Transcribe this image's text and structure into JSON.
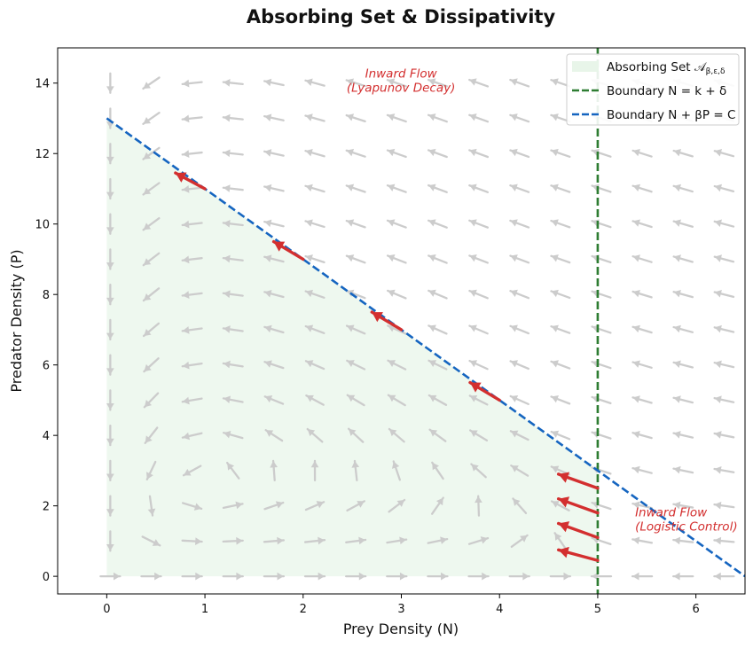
{
  "chart_data": {
    "type": "quiver",
    "title": "Absorbing Set & Dissipativity",
    "xlabel": "Prey Density (N)",
    "ylabel": "Predator Density (P)",
    "xlim": [
      -0.5,
      6.5
    ],
    "ylim": [
      -0.5,
      15
    ],
    "xticks": [
      0,
      1,
      2,
      3,
      4,
      5,
      6
    ],
    "yticks": [
      0,
      2,
      4,
      6,
      8,
      10,
      12,
      14
    ],
    "grid": false,
    "legend_position": "top-right",
    "legend": [
      {
        "label": "Absorbing Set 𝒜",
        "sub": "β,ε,δ",
        "kind": "fill",
        "color": "#e8f5e9"
      },
      {
        "label": "Boundary N = k + δ",
        "kind": "line",
        "color": "#2e7d32"
      },
      {
        "label": "Boundary N + βP = C",
        "kind": "line",
        "color": "#1565c0"
      }
    ],
    "absorbing_set_polygon": [
      [
        0,
        0
      ],
      [
        5,
        0
      ],
      [
        5,
        3
      ],
      [
        0,
        13
      ]
    ],
    "vertical_boundary_N": 5,
    "diagonal_boundary": {
      "N_intercept": 6.5,
      "P_intercept": 13
    },
    "field": {
      "color": "#cccccc",
      "x_start": 0,
      "x_step": 0.4167,
      "x_count": 17,
      "y_start": 0,
      "y_step": 1.0,
      "y_count": 15,
      "model": "predator-prey (normalized direction)"
    },
    "inward_arrows": [
      {
        "from": [
          1.0,
          11.0
        ],
        "to": [
          0.7,
          11.45
        ]
      },
      {
        "from": [
          2.0,
          9.0
        ],
        "to": [
          1.7,
          9.5
        ]
      },
      {
        "from": [
          3.0,
          7.0
        ],
        "to": [
          2.7,
          7.5
        ]
      },
      {
        "from": [
          4.0,
          5.0
        ],
        "to": [
          3.7,
          5.5
        ]
      },
      {
        "from": [
          5.0,
          2.5
        ],
        "to": [
          4.6,
          2.9
        ]
      },
      {
        "from": [
          5.0,
          1.8
        ],
        "to": [
          4.6,
          2.2
        ]
      },
      {
        "from": [
          5.0,
          1.1
        ],
        "to": [
          4.6,
          1.5
        ]
      },
      {
        "from": [
          5.0,
          0.45
        ],
        "to": [
          4.6,
          0.75
        ]
      }
    ],
    "arrow_color": "#d32f2f",
    "annotations": [
      {
        "text": "Inward Flow",
        "line2": "(Lyapunov Decay)",
        "at": [
          2.5,
          14.0
        ],
        "color": "#d32f2f"
      },
      {
        "text": "Inward Flow",
        "line2": "(Logistic Control)",
        "at": [
          5.2,
          1.5
        ],
        "color": "#d32f2f"
      }
    ]
  }
}
